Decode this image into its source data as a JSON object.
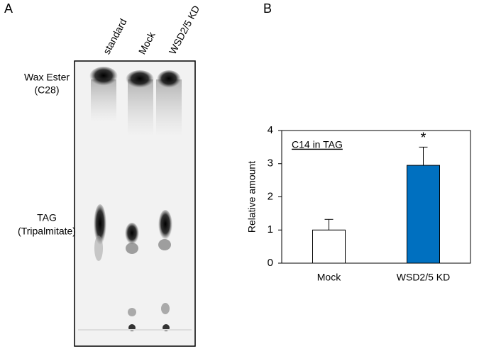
{
  "panel_a": {
    "panel_label": "A",
    "lanes": [
      "standard",
      "Mock",
      "WSD2/5 KD"
    ],
    "band_labels": [
      [
        "Wax Ester",
        "(C28)"
      ],
      [
        "TAG",
        "(Tripalmitate)"
      ]
    ]
  },
  "panel_b_label": "B",
  "chart_data": {
    "type": "bar",
    "annotation": "C14 in TAG",
    "y_label": "Relative amount",
    "categories": [
      "Mock",
      "WSD2/5 KD"
    ],
    "values": [
      1.0,
      2.95
    ],
    "errors": [
      0.32,
      0.55
    ],
    "colors": [
      "#ffffff",
      "#0070c0"
    ],
    "significance_labels": [
      null,
      "*"
    ],
    "ylim": [
      0,
      4
    ],
    "yticks": [
      0,
      1,
      2,
      3,
      4
    ]
  }
}
